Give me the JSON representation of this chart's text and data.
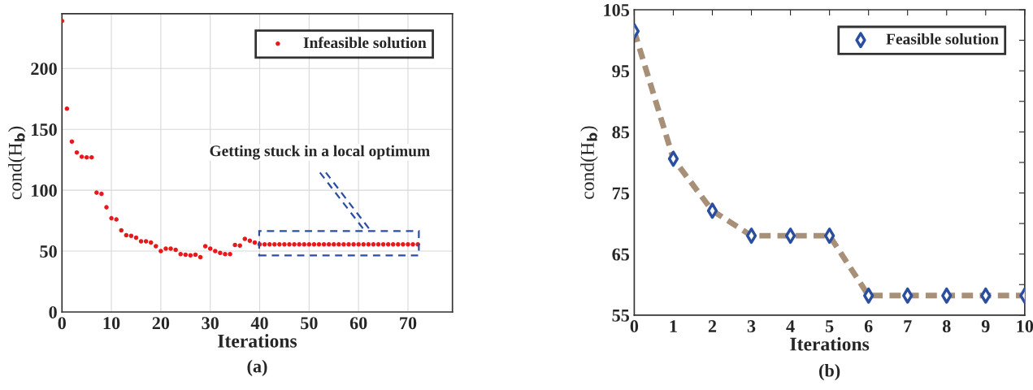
{
  "chart_data": [
    {
      "type": "scatter",
      "xlabel": "Iterations",
      "ylabel": "cond(H$_{b}$)",
      "xlim": [
        0,
        79
      ],
      "ylim": [
        0,
        245
      ],
      "xticks": [
        0,
        10,
        20,
        30,
        40,
        50,
        60,
        70
      ],
      "yticks": [
        0,
        50,
        100,
        150,
        200
      ],
      "grid": true,
      "legend": "top right",
      "marker": "circle",
      "annotations": [
        "Getting stuck in a local optimum",
        "(a)"
      ],
      "series": [
        {
          "name": "Infeasible solution",
          "color": "#e8191b",
          "x": [
            0,
            1,
            2,
            3,
            4,
            5,
            6,
            7,
            8,
            9,
            10,
            11,
            12,
            13,
            14,
            15,
            16,
            17,
            18,
            19,
            20,
            21,
            22,
            23,
            24,
            25,
            26,
            27,
            28,
            29,
            30,
            31,
            32,
            33,
            34,
            35,
            36,
            37,
            38,
            39,
            40,
            41,
            42,
            43,
            44,
            45,
            46,
            47,
            48,
            49,
            50,
            51,
            52,
            53,
            54,
            55,
            56,
            57,
            58,
            59,
            60,
            61,
            62,
            63,
            64,
            65,
            66,
            67,
            68,
            69,
            70,
            71,
            72
          ],
          "values": [
            239,
            167,
            140,
            131,
            127.5,
            127,
            127,
            98,
            97,
            86,
            77,
            76,
            67,
            63,
            62.5,
            61,
            58,
            58,
            57,
            54,
            50,
            52,
            52,
            51,
            47.5,
            47,
            46.5,
            47,
            45,
            54,
            52,
            50,
            48.5,
            47.5,
            47.5,
            55,
            54.5,
            60,
            58.5,
            57,
            55.5,
            55.5,
            55.5,
            55.5,
            55.5,
            55.5,
            55.5,
            55.5,
            55.5,
            55.5,
            55.5,
            55.5,
            55.5,
            55.5,
            55.5,
            55.5,
            55.5,
            55.5,
            55.5,
            55.5,
            55.5,
            55.5,
            55.5,
            55.5,
            55.5,
            55.5,
            55.5,
            55.5,
            55.5,
            55.5,
            55.5,
            55.5,
            55.5
          ]
        }
      ]
    },
    {
      "type": "line",
      "xlabel": "Iterations",
      "ylabel": "cond(H$_{b}$)",
      "xlim": [
        0,
        10
      ],
      "ylim": [
        55,
        105
      ],
      "xticks": [
        0,
        1,
        2,
        3,
        4,
        5,
        6,
        7,
        8,
        9,
        10
      ],
      "yticks": [
        55,
        {
          "value": 60,
          "label": null
        },
        65,
        {
          "value": 70,
          "label": null
        },
        75,
        {
          "value": 80,
          "label": null
        },
        85,
        {
          "value": 90,
          "label": null
        },
        95,
        {
          "value": 100,
          "label": null
        },
        105
      ],
      "grid": false,
      "legend": "top right",
      "annotations": [
        "(b)"
      ],
      "series": [
        {
          "type": "line",
          "color": "#a89078",
          "line_style": "dashed",
          "marker": "none",
          "x": [
            0,
            1,
            2,
            3,
            4,
            5,
            6,
            7,
            8,
            9,
            10
          ],
          "values": [
            101.5,
            80.6,
            72.1,
            68,
            68,
            68,
            58.2,
            58.2,
            58.2,
            58.2,
            58.2
          ]
        },
        {
          "type": "scatter",
          "name": "Feasible solution",
          "color": "#2a4fa0",
          "marker": "diamond",
          "x": [
            0,
            1,
            2,
            3,
            4,
            5,
            6,
            7,
            8,
            9,
            10
          ],
          "values": [
            101.5,
            80.6,
            72.1,
            68,
            68,
            68,
            58.2,
            58.2,
            58.2,
            58.2,
            58.2
          ]
        }
      ]
    }
  ]
}
